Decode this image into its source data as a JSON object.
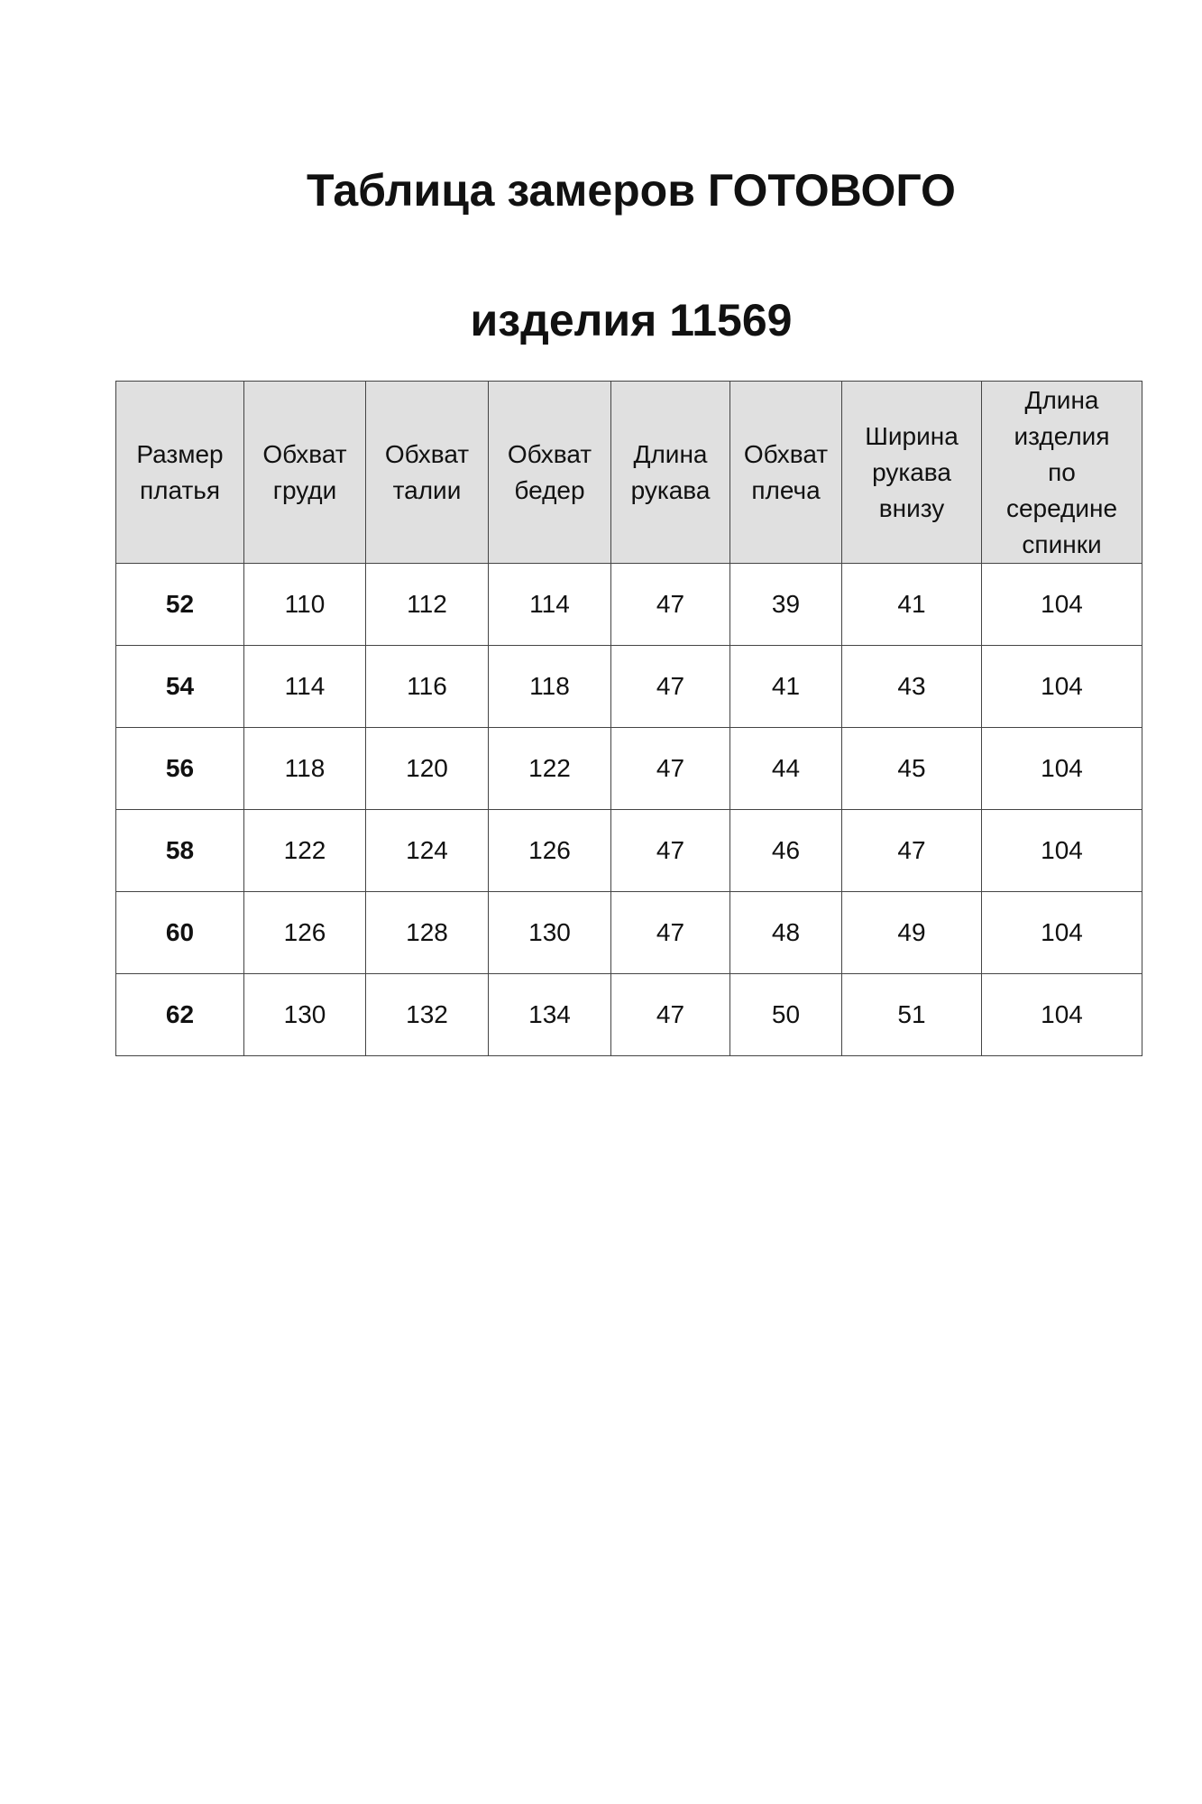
{
  "title_line1": "Таблица замеров ГОТОВОГО",
  "title_line2": "изделия 11569",
  "table": {
    "headers": [
      [
        "Размер",
        "платья"
      ],
      [
        "Обхват",
        "груди"
      ],
      [
        "Обхват",
        "талии"
      ],
      [
        "Обхват",
        "бедер"
      ],
      [
        "Длина",
        "рукава"
      ],
      [
        "Обхват",
        "плеча"
      ],
      [
        "Ширина",
        "рукава",
        "внизу"
      ],
      [
        "Длина",
        "изделия",
        "по",
        "середине",
        "спинки"
      ]
    ],
    "rows": [
      [
        "52",
        "110",
        "112",
        "114",
        "47",
        "39",
        "41",
        "104"
      ],
      [
        "54",
        "114",
        "116",
        "118",
        "47",
        "41",
        "43",
        "104"
      ],
      [
        "56",
        "118",
        "120",
        "122",
        "47",
        "44",
        "45",
        "104"
      ],
      [
        "58",
        "122",
        "124",
        "126",
        "47",
        "46",
        "47",
        "104"
      ],
      [
        "60",
        "126",
        "128",
        "130",
        "47",
        "48",
        "49",
        "104"
      ],
      [
        "62",
        "130",
        "132",
        "134",
        "47",
        "50",
        "51",
        "104"
      ]
    ]
  },
  "colors": {
    "header_bg": "#e0e0e0",
    "border": "#444444"
  }
}
